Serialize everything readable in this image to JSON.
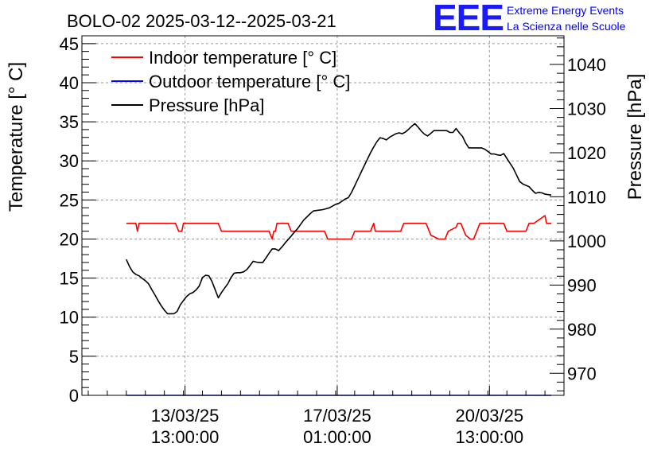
{
  "header": {
    "title": "BOLO-02 2025-03-12--2025-03-21",
    "logo_text": "EEE",
    "org_line1": "Extreme Energy Events",
    "org_line2": "La Scienza nelle Scuole"
  },
  "colors": {
    "indoor": "#ff0000",
    "outdoor": "#0000ff",
    "pressure": "#000000",
    "logo": "#1a1aff",
    "org_text": "#0000ff",
    "grid": "#9a9a9a"
  },
  "chart_data": {
    "type": "line",
    "title": "BOLO-02 2025-03-12--2025-03-21",
    "xlabel": "",
    "ylabel": "Temperature [° C]",
    "y2label": "Pressure [hPa]",
    "ylim": [
      0,
      46
    ],
    "y2lim": [
      965.0,
      1046.5
    ],
    "xlim_hours": [
      -28,
      276
    ],
    "yticks": [
      0,
      5,
      10,
      15,
      20,
      25,
      30,
      35,
      40,
      45
    ],
    "y2ticks": [
      970,
      980,
      990,
      1000,
      1010,
      1020,
      1030,
      1040
    ],
    "xticks": [
      {
        "hour": 37,
        "line1": "13/03/25",
        "line2": "13:00:00"
      },
      {
        "hour": 133,
        "line1": "17/03/25",
        "line2": "01:00:00"
      },
      {
        "hour": 229,
        "line1": "20/03/25",
        "line2": "13:00:00"
      }
    ],
    "grid": true,
    "legend": {
      "position": "top-left",
      "entries": [
        "Indoor temperature [° C]",
        "Outdoor temperature [° C]",
        "Pressure [hPa]"
      ]
    },
    "series": [
      {
        "name": "Indoor temperature [° C]",
        "axis": "left",
        "x": [
          0,
          5,
          6,
          7,
          8,
          30,
          31,
          32,
          33,
          34,
          35,
          36,
          57,
          58,
          59,
          60,
          61,
          62,
          89,
          90,
          91,
          92,
          93,
          94,
          95,
          101,
          102,
          103,
          104,
          105,
          106,
          107,
          123,
          124,
          125,
          126,
          127,
          128,
          130,
          131,
          132,
          133,
          134,
          135,
          141,
          142,
          143,
          144,
          145,
          146,
          153,
          154,
          155,
          156,
          157,
          158,
          159,
          171,
          172,
          173,
          174,
          175,
          176,
          177,
          187,
          188,
          189,
          190,
          191,
          192,
          197,
          198,
          199,
          200,
          201,
          202,
          203,
          208,
          209,
          210,
          211,
          212,
          213,
          214,
          217,
          218,
          219,
          220,
          221,
          222,
          223,
          236,
          237,
          238,
          239,
          240,
          241,
          242,
          251,
          252,
          253,
          254,
          255,
          256,
          257,
          264,
          265,
          266,
          267,
          268
        ],
        "values": [
          22,
          22,
          22,
          21,
          22,
          22,
          22,
          21.5,
          21,
          21,
          21,
          22,
          22,
          22,
          21.5,
          21,
          21,
          21,
          21,
          21,
          20.5,
          20,
          21,
          21,
          22,
          22,
          22,
          21.5,
          21,
          21,
          21,
          21,
          21,
          21,
          21,
          20.5,
          20,
          20,
          20,
          20,
          20,
          20,
          20,
          20,
          20,
          20,
          20.5,
          21,
          21,
          21,
          21,
          21,
          21.5,
          22,
          21,
          21,
          21,
          21,
          21,
          21,
          21.5,
          22,
          22,
          22,
          22,
          22,
          22,
          21.5,
          21,
          20.5,
          20,
          20,
          20,
          20,
          20,
          20.5,
          21,
          21.5,
          22,
          22,
          22,
          21.5,
          21,
          20.5,
          20,
          20,
          20,
          20.5,
          21,
          21.5,
          22,
          22,
          22,
          22,
          21.5,
          21,
          21,
          21,
          21,
          21,
          21.5,
          22,
          22,
          22,
          22,
          23,
          22,
          22,
          22,
          22
        ]
      },
      {
        "name": "Outdoor temperature [° C]",
        "axis": "left",
        "x": [
          0,
          268
        ],
        "values": [
          0,
          0
        ]
      },
      {
        "name": "Pressure [hPa]",
        "axis": "right",
        "x": [
          0,
          2,
          4,
          6,
          8,
          10,
          12,
          14,
          16,
          18,
          20,
          22,
          24,
          26,
          28,
          30,
          32,
          34,
          36,
          38,
          40,
          42,
          44,
          46,
          48,
          50,
          52,
          54,
          56,
          58,
          60,
          62,
          64,
          66,
          68,
          70,
          72,
          74,
          76,
          78,
          80,
          82,
          84,
          86,
          88,
          90,
          92,
          94,
          96,
          98,
          100,
          102,
          104,
          106,
          108,
          110,
          112,
          114,
          116,
          118,
          120,
          122,
          124,
          126,
          128,
          130,
          132,
          134,
          136,
          138,
          140,
          142,
          144,
          146,
          148,
          150,
          152,
          154,
          156,
          158,
          160,
          162,
          164,
          166,
          168,
          170,
          172,
          174,
          176,
          178,
          180,
          182,
          184,
          186,
          188,
          190,
          192,
          194,
          196,
          198,
          200,
          202,
          204,
          206,
          208,
          210,
          212,
          214,
          216,
          218,
          220,
          222,
          224,
          226,
          228,
          230,
          232,
          234,
          236,
          238,
          240,
          242,
          244,
          246,
          248,
          250,
          252,
          254,
          256,
          258,
          260,
          262,
          264,
          266,
          268
        ],
        "values": [
          995.8,
          994.2,
          993,
          992.4,
          992.1,
          991.5,
          991,
          990.3,
          989,
          987.8,
          986.5,
          985.3,
          984.3,
          983.5,
          983.5,
          983.5,
          984,
          985.5,
          986.5,
          987.4,
          988,
          988.3,
          988.9,
          989.8,
          991.7,
          992.2,
          992.1,
          990.8,
          989,
          987.1,
          988.3,
          989.3,
          990.3,
          991.7,
          992.7,
          992.8,
          992.8,
          993,
          993.5,
          994.4,
          995.4,
          995.2,
          995.1,
          995.1,
          996.1,
          997.2,
          998.2,
          998.2,
          997.8,
          998.6,
          999.5,
          1000.3,
          1001.1,
          1002,
          1002.8,
          1003.8,
          1004.8,
          1005.5,
          1006.2,
          1006.8,
          1006.9,
          1007,
          1007.1,
          1007.3,
          1007.5,
          1007.9,
          1008.3,
          1008.5,
          1009,
          1009.5,
          1009.8,
          1011,
          1012.5,
          1014,
          1015.5,
          1017,
          1018.5,
          1020,
          1021.3,
          1022.5,
          1023.4,
          1023.2,
          1022.9,
          1023.5,
          1023.9,
          1024.3,
          1024.5,
          1024.3,
          1024.7,
          1025.3,
          1026,
          1026.6,
          1025.8,
          1024.9,
          1024.2,
          1023.8,
          1024.4,
          1025,
          1025,
          1025,
          1025,
          1025,
          1024.6,
          1024.6,
          1025.5,
          1024.5,
          1023.7,
          1022.2,
          1021.1,
          1021.1,
          1021.1,
          1021.1,
          1021.1,
          1020.8,
          1020.3,
          1019.7,
          1019.7,
          1019.5,
          1019.4,
          1019.8,
          1018.7,
          1017.6,
          1016.5,
          1015,
          1013.5,
          1012.9,
          1012.6,
          1012.3,
          1011.5,
          1010.8,
          1011,
          1010.9,
          1010.6,
          1010.5,
          1010.4
        ]
      }
    ]
  }
}
